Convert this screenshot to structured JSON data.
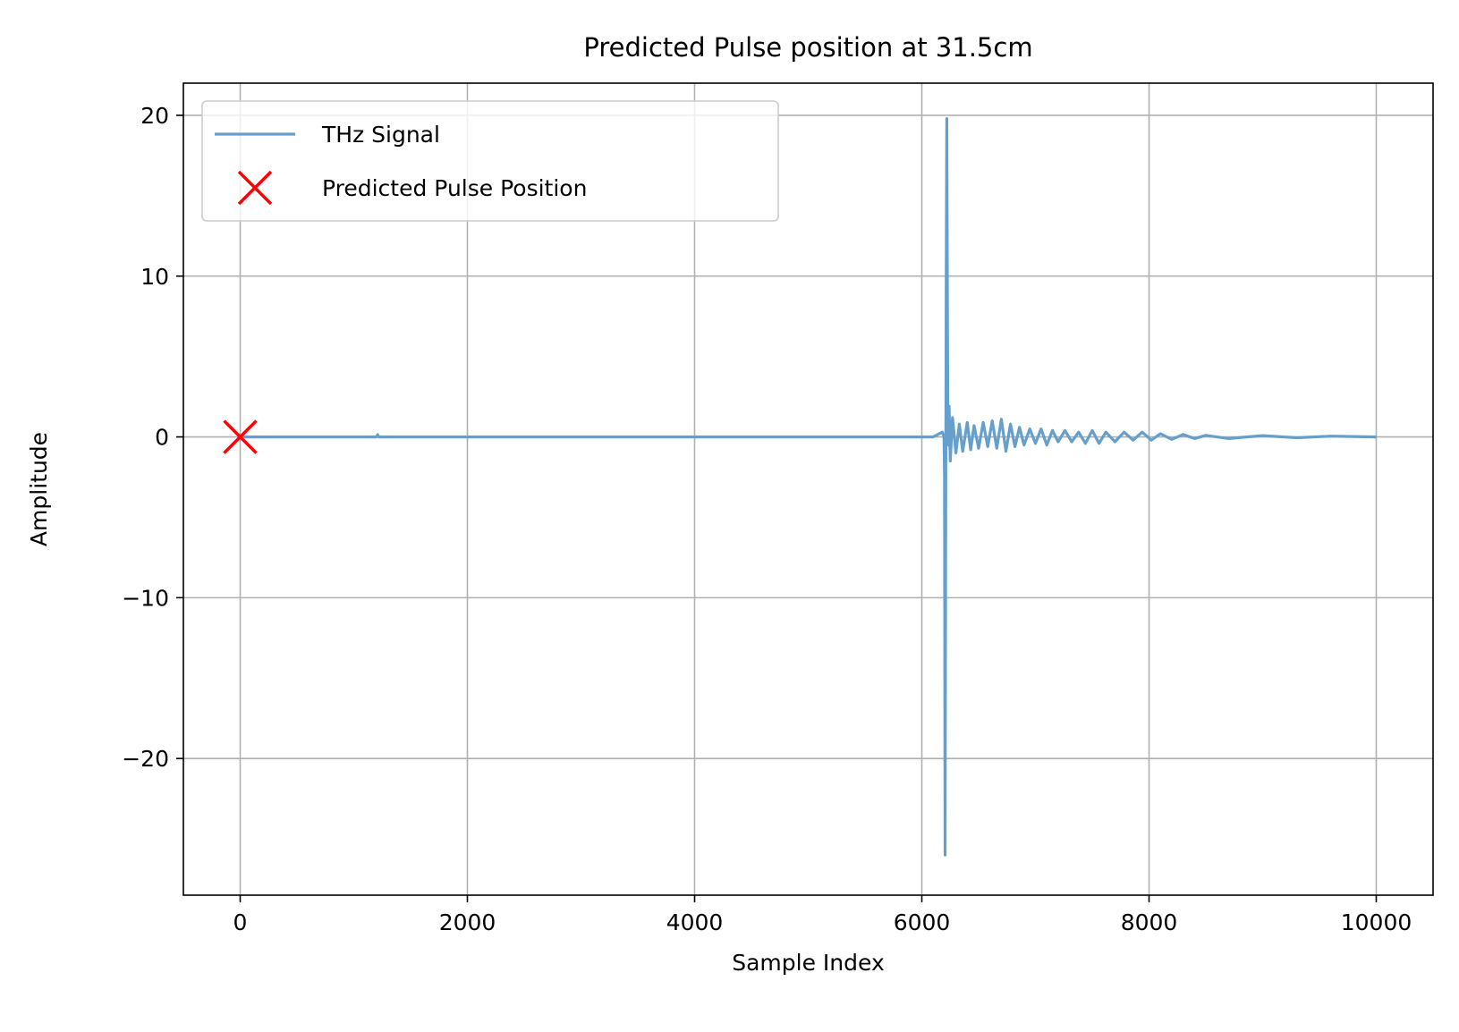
{
  "chart_data": {
    "type": "line",
    "title": "Predicted Pulse position at 31.5cm",
    "xlabel": "Sample Index",
    "ylabel": "Amplitude",
    "xlim": [
      -500,
      10500
    ],
    "ylim": [
      -28.5,
      22
    ],
    "xticks": [
      0,
      2000,
      4000,
      6000,
      8000,
      10000
    ],
    "xtick_labels": [
      "0",
      "2000",
      "4000",
      "6000",
      "8000",
      "10000"
    ],
    "yticks": [
      -20,
      -10,
      0,
      10,
      20
    ],
    "ytick_labels": [
      "−20",
      "−10",
      "0",
      "10",
      "20"
    ],
    "grid": true,
    "legend_position": "upper-left",
    "series": [
      {
        "name": "THz Signal",
        "kind": "line",
        "color": "#659fcb",
        "x": [
          0,
          1200,
          1210,
          1220,
          6100,
          6180,
          6195,
          6200,
          6205,
          6210,
          6215,
          6220,
          6225,
          6230,
          6240,
          6250,
          6270,
          6300,
          6330,
          6360,
          6400,
          6430,
          6460,
          6500,
          6540,
          6580,
          6620,
          6660,
          6700,
          6740,
          6780,
          6820,
          6860,
          6900,
          6950,
          7000,
          7050,
          7100,
          7150,
          7200,
          7260,
          7320,
          7380,
          7440,
          7500,
          7560,
          7620,
          7700,
          7780,
          7860,
          7940,
          8020,
          8100,
          8200,
          8300,
          8400,
          8500,
          8700,
          9000,
          9300,
          9600,
          10000
        ],
        "y": [
          0,
          0,
          0.15,
          0,
          0,
          0.3,
          0,
          -2.5,
          -26,
          -5,
          10,
          19.8,
          8,
          -0.5,
          1.9,
          -1.5,
          1.2,
          -1.0,
          0.8,
          -0.9,
          0.9,
          -0.8,
          0.7,
          -0.7,
          0.9,
          -0.6,
          1.0,
          -0.7,
          1.1,
          -0.9,
          0.8,
          -0.6,
          0.6,
          -0.5,
          0.5,
          -0.4,
          0.5,
          -0.5,
          0.4,
          -0.3,
          0.4,
          -0.3,
          0.3,
          -0.4,
          0.4,
          -0.4,
          0.3,
          -0.3,
          0.3,
          -0.2,
          0.3,
          -0.2,
          0.2,
          -0.15,
          0.15,
          -0.1,
          0.1,
          -0.1,
          0.08,
          -0.05,
          0.05,
          0
        ]
      },
      {
        "name": "Predicted Pulse Position",
        "kind": "scatter",
        "marker": "x",
        "color": "#ff0000",
        "x": [
          0
        ],
        "y": [
          0
        ]
      }
    ]
  }
}
